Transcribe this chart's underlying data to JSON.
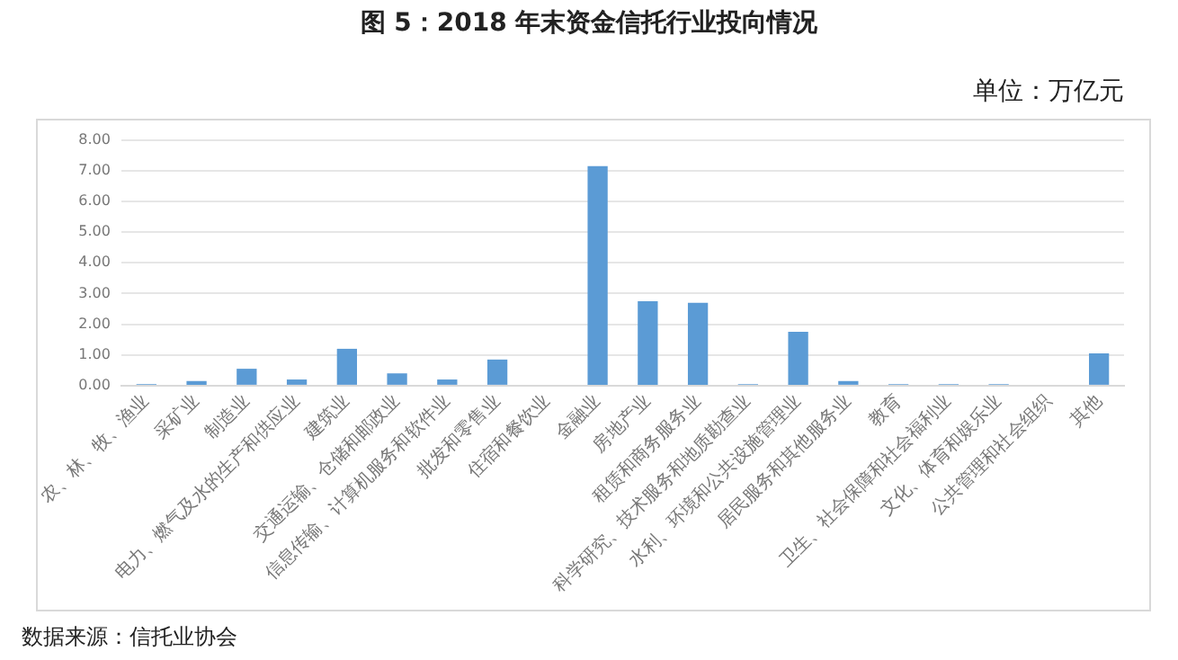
{
  "chart_data": {
    "type": "bar",
    "title": "图 5：2018 年末资金信托行业投向情况",
    "subtitle": "单位：万亿元",
    "categories": [
      "农、林、牧、渔业",
      "采矿业",
      "制造业",
      "电力、燃气及水的生产和供应业",
      "建筑业",
      "交通运输、仓储和邮政业",
      "信息传输、计算机服务和软件业",
      "批发和零售业",
      "住宿和餐饮业",
      "金融业",
      "房地产业",
      "租赁和商务服务业",
      "科学研究、技术服务和地质勘查业",
      "水利、环境和公共设施管理业",
      "居民服务和其他服务业",
      "教育",
      "卫生、社会保障和社会福利业",
      "文化、体育和娱乐业",
      "公共管理和社会组织",
      "其他"
    ],
    "values": [
      0.05,
      0.15,
      0.55,
      0.2,
      1.2,
      0.4,
      0.2,
      0.85,
      0,
      7.15,
      2.75,
      2.7,
      0.05,
      1.75,
      0.15,
      0.05,
      0.05,
      0.05,
      0,
      1.05
    ],
    "color": "#5b9bd5",
    "ylim": [
      0,
      8
    ],
    "yticks": [
      {
        "value": 0,
        "label": "0.00"
      },
      {
        "value": 1,
        "label": "1.00"
      },
      {
        "value": 2,
        "label": "2.00"
      },
      {
        "value": 3,
        "label": "3.00"
      },
      {
        "value": 4,
        "label": "4.00"
      },
      {
        "value": 5,
        "label": "5.00"
      },
      {
        "value": 6,
        "label": "6.00"
      },
      {
        "value": 7,
        "label": "7.00"
      },
      {
        "value": 8,
        "label": "8.00"
      }
    ],
    "grid": "y",
    "legend": false,
    "annotations": [
      "数据来源：信托业协会"
    ]
  }
}
